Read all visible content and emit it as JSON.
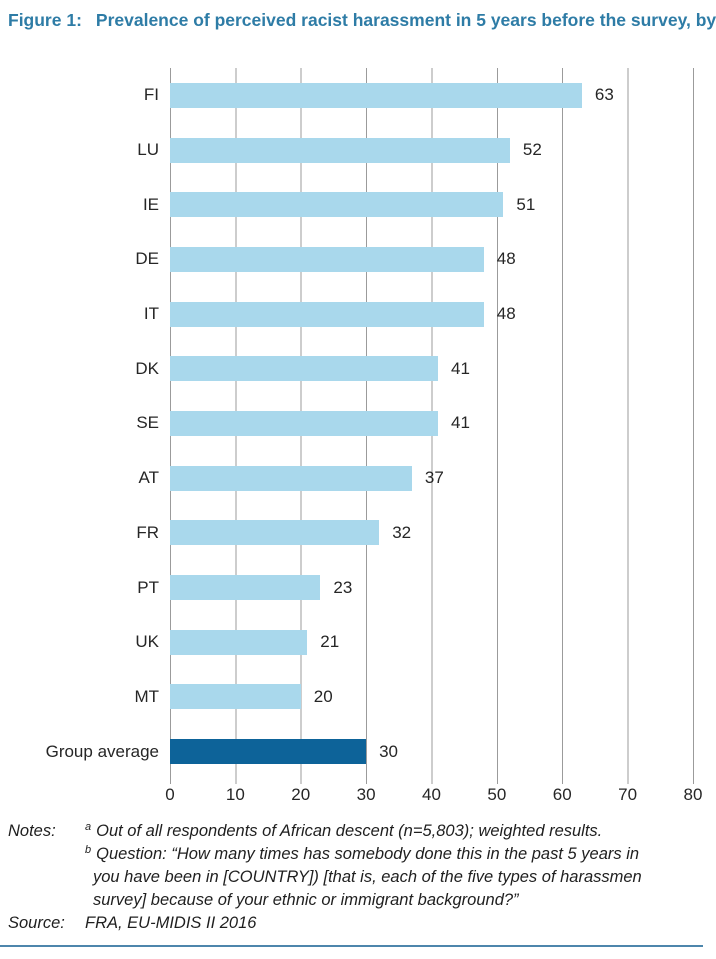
{
  "title": {
    "prefix": "Figure 1:",
    "text": "Prevalence of perceived racist harassment in 5 years before the survey, by"
  },
  "chart_data": {
    "type": "bar",
    "orientation": "horizontal",
    "title": "Prevalence of perceived racist harassment in 5 years before the survey",
    "categories": [
      "FI",
      "LU",
      "IE",
      "DE",
      "IT",
      "DK",
      "SE",
      "AT",
      "FR",
      "PT",
      "UK",
      "MT",
      "Group average"
    ],
    "values": [
      63,
      52,
      51,
      48,
      48,
      41,
      41,
      37,
      32,
      23,
      21,
      20,
      30
    ],
    "highlight_category": "Group average",
    "xlabel": "",
    "ylabel": "",
    "xlim": [
      0,
      80
    ],
    "xticks": [
      0,
      10,
      20,
      30,
      40,
      50,
      60,
      70,
      80
    ],
    "grid": "vertical",
    "legend": "none",
    "colors": {
      "bar": "#a9d8ec",
      "highlight": "#0d6399",
      "gridline": "#9b9b9b",
      "label_text": "#262626",
      "title_text": "#2e7ca6"
    }
  },
  "notes": {
    "label": "Notes:",
    "items": [
      {
        "sup": "a",
        "text": "Out of all respondents of African descent (n=5,803); weighted results.",
        "continuation": []
      },
      {
        "sup": "b",
        "text": "Question: “How many times has somebody done this in the past 5 years in",
        "continuation": [
          "you have been in [COUNTRY]) [that is, each of the five types of harassmen",
          "survey] because of your ethnic or immigrant background?”"
        ]
      }
    ]
  },
  "source": {
    "label": "Source:",
    "text": "FRA, EU-MIDIS II 2016"
  }
}
